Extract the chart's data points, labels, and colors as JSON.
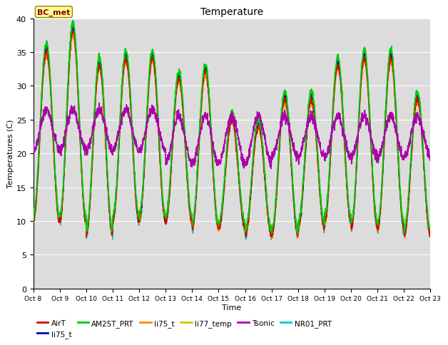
{
  "title": "Temperature",
  "xlabel": "Time",
  "ylabel": "Temperatures (C)",
  "ylim": [
    0,
    40
  ],
  "yticks": [
    0,
    5,
    10,
    15,
    20,
    25,
    30,
    35,
    40
  ],
  "annotation_text": "BC_met",
  "annotation_color": "#8B0000",
  "annotation_bg": "#FFFF99",
  "legend": [
    {
      "label": "AirT",
      "color": "#DD0000"
    },
    {
      "label": "li75_t",
      "color": "#0000BB"
    },
    {
      "label": "AM25T_PRT",
      "color": "#00CC00"
    },
    {
      "label": "li75_t",
      "color": "#FF8800"
    },
    {
      "label": "li77_temp",
      "color": "#CCCC00"
    },
    {
      "label": "Tsonic",
      "color": "#AA00AA"
    },
    {
      "label": "NR01_PRT",
      "color": "#00CCCC"
    }
  ],
  "n_days": 15,
  "pts_per_day": 144,
  "start_day": 8,
  "bg_color": "#DCDCDC"
}
